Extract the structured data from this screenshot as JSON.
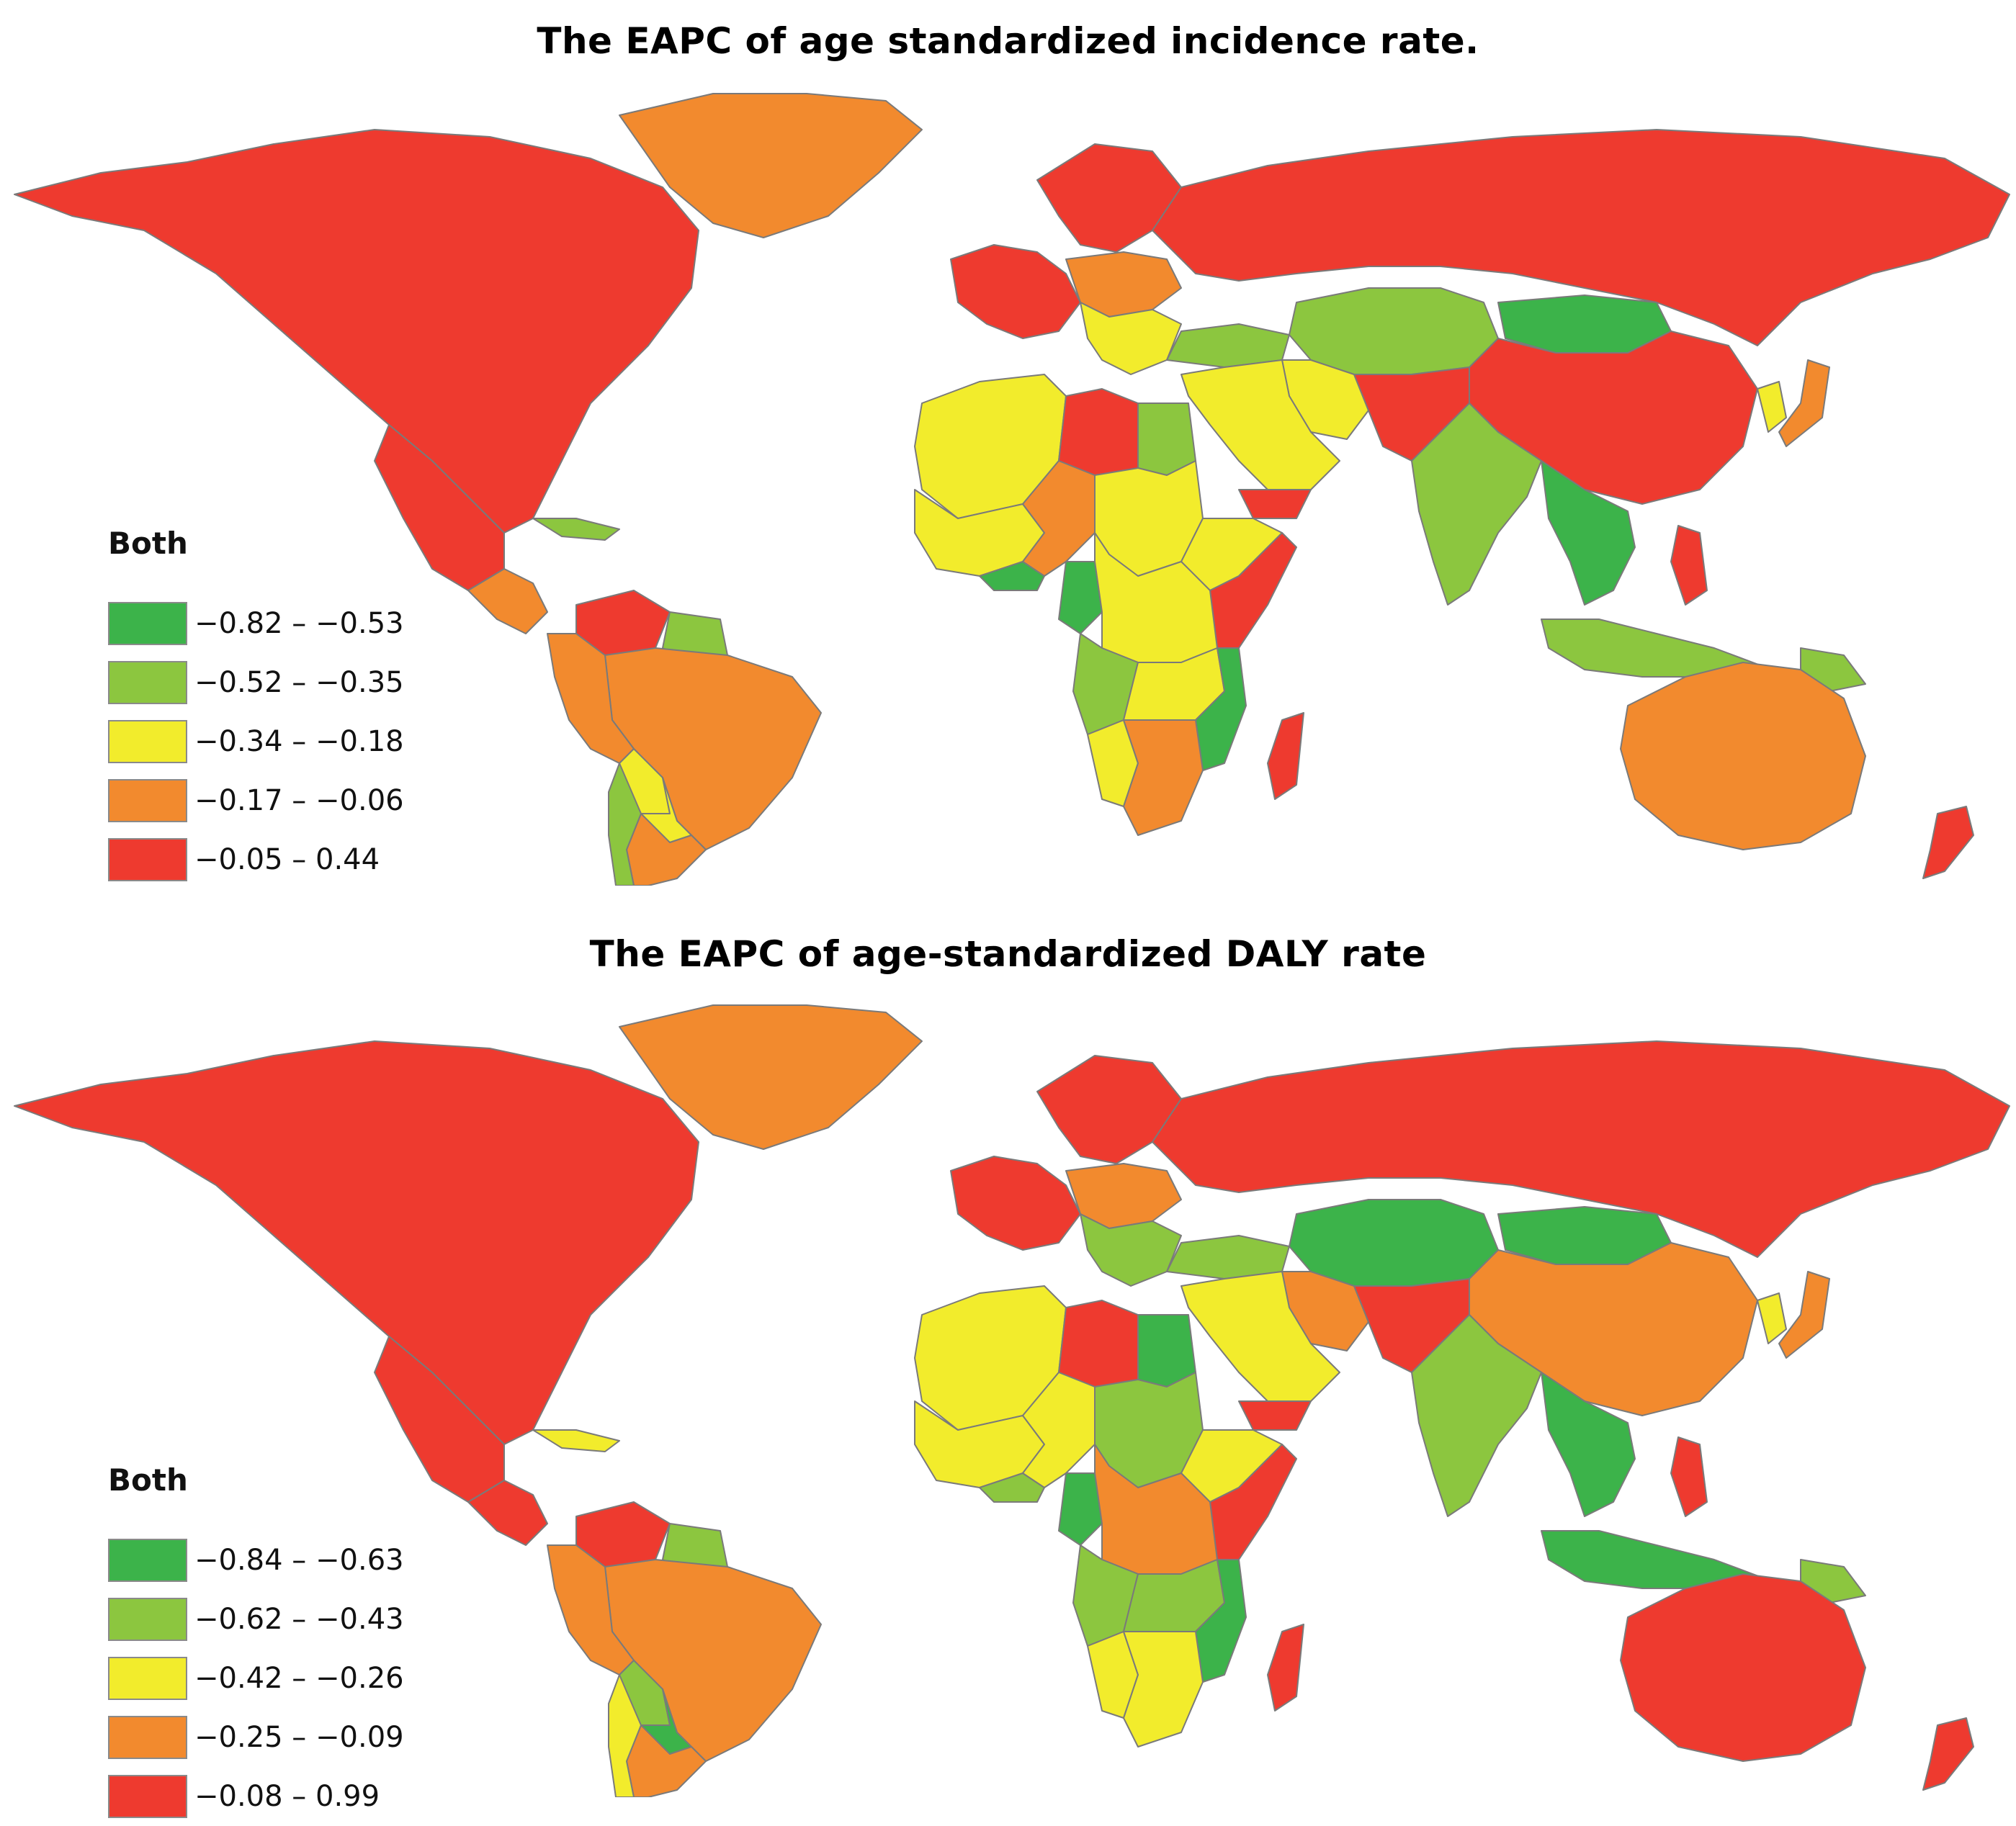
{
  "colors": {
    "class1": "#3cb34a",
    "class2": "#8cc63f",
    "class3": "#f2ec2c",
    "class4": "#f28a2e",
    "class5": "#ee3a2f",
    "border": "#7a7a7a"
  },
  "panels": [
    {
      "title": "The EAPC of  age standardized incidence rate.",
      "legend": {
        "title": "Both",
        "items": [
          {
            "label": "−0.82 – −0.53",
            "color": "#3cb34a"
          },
          {
            "label": "−0.52 – −0.35",
            "color": "#8cc63f"
          },
          {
            "label": "−0.34 – −0.18",
            "color": "#f2ec2c"
          },
          {
            "label": "−0.17 – −0.06",
            "color": "#f28a2e"
          },
          {
            "label": "−0.05 – 0.44",
            "color": "#ee3a2f"
          }
        ]
      },
      "regions": {
        "north-america": "class5",
        "greenland": "class4",
        "mexico": "class5",
        "central-america": "class4",
        "caribbean": "class2",
        "venezuela": "class5",
        "guianas": "class2",
        "brazil": "class4",
        "andes": "class4",
        "bolivia": "class3",
        "paraguay": "class3",
        "chile": "class2",
        "argentina": "class4",
        "western-europe": "class5",
        "central-europe": "class4",
        "balkans-italy": "class3",
        "scandinavia": "class5",
        "russia": "class5",
        "turkey": "class2",
        "central-asia": "class2",
        "mongolia": "class1",
        "china": "class5",
        "korea": "class3",
        "japan": "class4",
        "afghanistan-pakistan": "class5",
        "iran": "class3",
        "middle-east": "class3",
        "yemen": "class5",
        "india": "class2",
        "southeast-asia": "class1",
        "philippines": "class5",
        "indonesia": "class2",
        "papua-new-guinea": "class2",
        "australia": "class4",
        "new-zealand": "class5",
        "north-africa": "class3",
        "libya": "class5",
        "egypt": "class2",
        "west-africa": "class3",
        "guinea-coast": "class1",
        "nigeria": "class4",
        "sudan": "class3",
        "horn-of-africa": "class3",
        "somalia-kenya": "class5",
        "central-africa": "class3",
        "gabon-congo": "class1",
        "angola": "class2",
        "east-africa": "class3",
        "mozambique": "class1",
        "southern-africa": "class4",
        "namibia": "class3",
        "madagascar": "class5"
      }
    },
    {
      "title": "The EAPC of age-standardized DALY rate",
      "legend": {
        "title": "Both",
        "items": [
          {
            "label": "−0.84 – −0.63",
            "color": "#3cb34a"
          },
          {
            "label": "−0.62 – −0.43",
            "color": "#8cc63f"
          },
          {
            "label": "−0.42 – −0.26",
            "color": "#f2ec2c"
          },
          {
            "label": "−0.25 – −0.09",
            "color": "#f28a2e"
          },
          {
            "label": "−0.08 – 0.99",
            "color": "#ee3a2f"
          }
        ]
      },
      "regions": {
        "north-america": "class5",
        "greenland": "class4",
        "mexico": "class5",
        "central-america": "class5",
        "caribbean": "class3",
        "venezuela": "class5",
        "guianas": "class2",
        "brazil": "class4",
        "andes": "class4",
        "bolivia": "class2",
        "paraguay": "class1",
        "chile": "class3",
        "argentina": "class4",
        "western-europe": "class5",
        "central-europe": "class4",
        "balkans-italy": "class2",
        "scandinavia": "class5",
        "russia": "class5",
        "turkey": "class2",
        "central-asia": "class1",
        "mongolia": "class1",
        "china": "class4",
        "korea": "class3",
        "japan": "class4",
        "afghanistan-pakistan": "class5",
        "iran": "class4",
        "middle-east": "class3",
        "yemen": "class5",
        "india": "class2",
        "southeast-asia": "class1",
        "philippines": "class5",
        "indonesia": "class1",
        "papua-new-guinea": "class2",
        "australia": "class5",
        "new-zealand": "class5",
        "north-africa": "class3",
        "libya": "class5",
        "egypt": "class1",
        "west-africa": "class3",
        "guinea-coast": "class2",
        "nigeria": "class3",
        "sudan": "class2",
        "horn-of-africa": "class3",
        "somalia-kenya": "class5",
        "central-africa": "class4",
        "gabon-congo": "class1",
        "angola": "class2",
        "east-africa": "class2",
        "mozambique": "class1",
        "southern-africa": "class3",
        "namibia": "class3",
        "madagascar": "class5"
      }
    }
  ]
}
